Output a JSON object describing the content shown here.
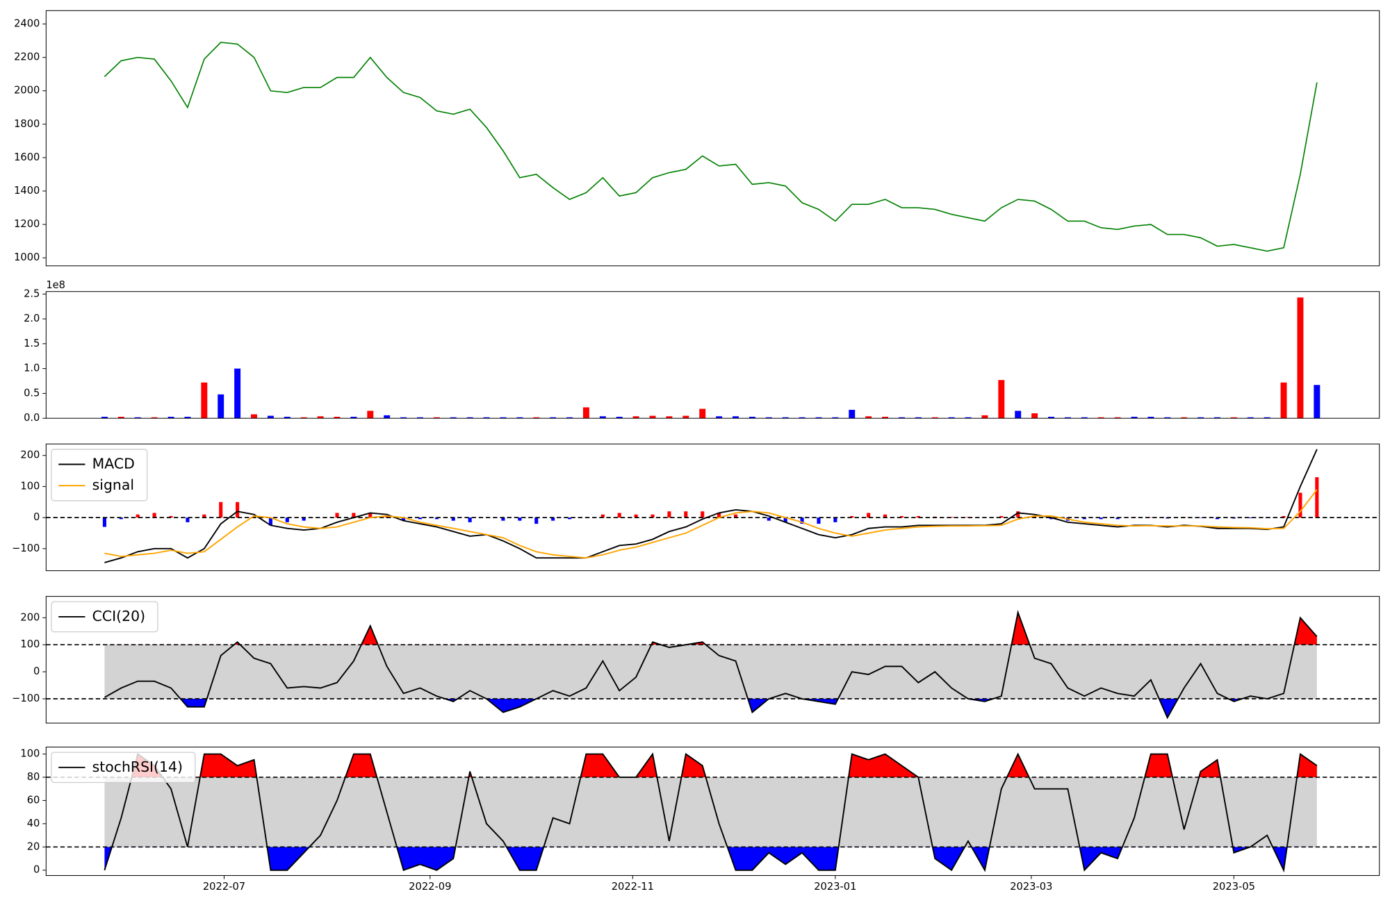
{
  "chart_data": [
    {
      "type": "line",
      "color": "green",
      "x": [
        145,
        150,
        155,
        160,
        165,
        170,
        175,
        180,
        185,
        190,
        195,
        200,
        205,
        210,
        215,
        220,
        225,
        230,
        235,
        240,
        245,
        250,
        255,
        260,
        265,
        270,
        275,
        280,
        285,
        290,
        295,
        300,
        305,
        310,
        315,
        320,
        325,
        330,
        335,
        340,
        345,
        350,
        355,
        360,
        365,
        370,
        375,
        380,
        385,
        390,
        395,
        400,
        405,
        410,
        415,
        420,
        425,
        430,
        435,
        440,
        445,
        450,
        455,
        460,
        465,
        470,
        475,
        480,
        485,
        490,
        495,
        500,
        505,
        510
      ],
      "values": [
        2085,
        2180,
        2200,
        2190,
        2060,
        1900,
        2190,
        2290,
        2280,
        2200,
        2000,
        1990,
        2020,
        2020,
        2080,
        2080,
        2200,
        2080,
        1990,
        1960,
        1880,
        1860,
        1890,
        1780,
        1640,
        1480,
        1500,
        1420,
        1350,
        1390,
        1480,
        1370,
        1390,
        1480,
        1510,
        1530,
        1610,
        1550,
        1560,
        1440,
        1450,
        1430,
        1330,
        1290,
        1220,
        1320,
        1320,
        1350,
        1300,
        1300,
        1290,
        1260,
        1240,
        1220,
        1300,
        1350,
        1340,
        1290,
        1220,
        1220,
        1180,
        1170,
        1190,
        1200,
        1140,
        1140,
        1120,
        1070,
        1080,
        1060,
        1040,
        1060,
        1500,
        2050
      ],
      "xlim": [
        127.4,
        528.8
      ],
      "ylim": [
        952,
        2480
      ],
      "yticks": [
        1000,
        1200,
        1400,
        1600,
        1800,
        2000,
        2200,
        2400
      ]
    },
    {
      "type": "bar",
      "scale_label": "1e8",
      "x": [
        145,
        150,
        155,
        160,
        165,
        170,
        175,
        180,
        185,
        190,
        195,
        200,
        205,
        210,
        215,
        220,
        225,
        230,
        235,
        240,
        245,
        250,
        255,
        260,
        265,
        270,
        275,
        280,
        285,
        290,
        295,
        300,
        305,
        310,
        315,
        320,
        325,
        330,
        335,
        340,
        345,
        350,
        355,
        360,
        365,
        370,
        375,
        380,
        385,
        390,
        395,
        400,
        405,
        410,
        415,
        420,
        425,
        430,
        435,
        440,
        445,
        450,
        455,
        460,
        465,
        470,
        475,
        480,
        485,
        490,
        495,
        500,
        505,
        510
      ],
      "values": [
        0.03,
        0.03,
        0.02,
        0.02,
        0.03,
        0.03,
        0.72,
        0.48,
        1.0,
        0.08,
        0.05,
        0.03,
        0.02,
        0.04,
        0.03,
        0.03,
        0.15,
        0.06,
        0.02,
        0.02,
        0.02,
        0.02,
        0.02,
        0.02,
        0.02,
        0.02,
        0.02,
        0.02,
        0.02,
        0.22,
        0.04,
        0.03,
        0.04,
        0.05,
        0.04,
        0.05,
        0.19,
        0.04,
        0.04,
        0.03,
        0.02,
        0.02,
        0.02,
        0.02,
        0.02,
        0.17,
        0.04,
        0.03,
        0.02,
        0.02,
        0.02,
        0.02,
        0.02,
        0.06,
        0.77,
        0.15,
        0.1,
        0.03,
        0.02,
        0.02,
        0.02,
        0.02,
        0.03,
        0.03,
        0.02,
        0.02,
        0.02,
        0.02,
        0.02,
        0.02,
        0.02,
        0.72,
        2.43,
        0.67
      ],
      "colors": [
        "blue",
        "red",
        "blue",
        "red",
        "blue",
        "blue",
        "red",
        "blue",
        "blue",
        "red",
        "blue",
        "blue",
        "red",
        "red",
        "red",
        "blue",
        "red",
        "blue",
        "blue",
        "blue",
        "red",
        "blue",
        "blue",
        "blue",
        "blue",
        "blue",
        "red",
        "blue",
        "blue",
        "red",
        "blue",
        "blue",
        "red",
        "red",
        "red",
        "red",
        "red",
        "blue",
        "blue",
        "blue",
        "blue",
        "blue",
        "blue",
        "blue",
        "blue",
        "blue",
        "red",
        "red",
        "blue",
        "blue",
        "red",
        "blue",
        "blue",
        "red",
        "red",
        "blue",
        "red",
        "blue",
        "blue",
        "blue",
        "red",
        "red",
        "blue",
        "blue",
        "blue",
        "red",
        "blue",
        "blue",
        "red",
        "blue",
        "blue",
        "red",
        "red",
        "blue"
      ],
      "xlim": [
        127.4,
        528.8
      ],
      "ylim": [
        0,
        2.55
      ],
      "yticks": [
        {
          "value": 0,
          "label": "0.0"
        },
        0.5,
        {
          "value": 1,
          "label": "1.0"
        },
        1.5,
        {
          "value": 2,
          "label": "2.0"
        },
        2.5
      ]
    },
    {
      "type": "macd",
      "legend": "upper left",
      "hline": 0,
      "x": [
        145,
        150,
        155,
        160,
        165,
        170,
        175,
        180,
        185,
        190,
        195,
        200,
        205,
        210,
        215,
        220,
        225,
        230,
        235,
        240,
        245,
        250,
        255,
        260,
        265,
        270,
        275,
        280,
        285,
        290,
        295,
        300,
        305,
        310,
        315,
        320,
        325,
        330,
        335,
        340,
        345,
        350,
        355,
        360,
        365,
        370,
        375,
        380,
        385,
        390,
        395,
        400,
        405,
        410,
        415,
        420,
        425,
        430,
        435,
        440,
        445,
        450,
        455,
        460,
        465,
        470,
        475,
        480,
        485,
        490,
        495,
        500,
        505,
        510
      ],
      "series": [
        {
          "name": "MACD",
          "color": "black",
          "values": [
            -145,
            -130,
            -110,
            -100,
            -100,
            -130,
            -100,
            -20,
            20,
            10,
            -25,
            -35,
            -40,
            -35,
            -15,
            0,
            15,
            10,
            -10,
            -20,
            -30,
            -45,
            -60,
            -55,
            -75,
            -100,
            -130,
            -130,
            -130,
            -130,
            -110,
            -90,
            -85,
            -70,
            -45,
            -30,
            -5,
            15,
            25,
            20,
            5,
            -15,
            -35,
            -55,
            -65,
            -55,
            -35,
            -30,
            -30,
            -25,
            -25,
            -25,
            -25,
            -25,
            -20,
            15,
            10,
            0,
            -15,
            -20,
            -25,
            -30,
            -25,
            -25,
            -30,
            -25,
            -28,
            -35,
            -35,
            -35,
            -38,
            -30,
            100,
            220
          ]
        },
        {
          "name": "signal",
          "color": "orange",
          "values": [
            -115,
            -125,
            -120,
            -115,
            -105,
            -115,
            -110,
            -70,
            -30,
            5,
            0,
            -20,
            -30,
            -35,
            -30,
            -15,
            0,
            5,
            0,
            -15,
            -25,
            -35,
            -45,
            -55,
            -65,
            -90,
            -110,
            -120,
            -125,
            -130,
            -120,
            -105,
            -95,
            -80,
            -65,
            -50,
            -25,
            0,
            15,
            20,
            15,
            0,
            -15,
            -35,
            -50,
            -60,
            -50,
            -40,
            -35,
            -30,
            -28,
            -27,
            -27,
            -26,
            -25,
            -5,
            5,
            5,
            -5,
            -15,
            -20,
            -25,
            -27,
            -26,
            -27,
            -27,
            -27,
            -30,
            -32,
            -33,
            -36,
            -35,
            20,
            90
          ]
        }
      ],
      "histogram": {
        "up_color": "red",
        "down_color": "blue",
        "values": [
          -30,
          -5,
          10,
          15,
          5,
          -15,
          10,
          50,
          50,
          5,
          -25,
          -15,
          -10,
          0,
          15,
          15,
          15,
          5,
          -10,
          -5,
          -5,
          -10,
          -15,
          0,
          -10,
          -10,
          -20,
          -10,
          -5,
          0,
          10,
          15,
          10,
          10,
          20,
          20,
          20,
          15,
          10,
          0,
          -10,
          -15,
          -20,
          -20,
          -15,
          5,
          15,
          10,
          5,
          5,
          3,
          2,
          2,
          1,
          5,
          20,
          5,
          -5,
          -10,
          -5,
          -5,
          -5,
          2,
          1,
          -3,
          2,
          -1,
          -5,
          -3,
          -2,
          -2,
          5,
          80,
          130
        ]
      },
      "xlim": [
        127.4,
        528.8
      ],
      "ylim": [
        -171,
        237
      ],
      "yticks": [
        {
          "value": -100,
          "label": "−100"
        },
        0,
        100,
        200
      ]
    },
    {
      "type": "oscillator",
      "legend": "upper left",
      "lower": -100,
      "upper": 100,
      "band_color": "lightgray",
      "over_color": "red",
      "under_color": "blue",
      "x": [
        145,
        150,
        155,
        160,
        165,
        170,
        175,
        180,
        185,
        190,
        195,
        200,
        205,
        210,
        215,
        220,
        225,
        230,
        235,
        240,
        245,
        250,
        255,
        260,
        265,
        270,
        275,
        280,
        285,
        290,
        295,
        300,
        305,
        310,
        315,
        320,
        325,
        330,
        335,
        340,
        345,
        350,
        355,
        360,
        365,
        370,
        375,
        380,
        385,
        390,
        395,
        400,
        405,
        410,
        415,
        420,
        425,
        430,
        435,
        440,
        445,
        450,
        455,
        460,
        465,
        470,
        475,
        480,
        485,
        490,
        495,
        500,
        505,
        510
      ],
      "series": [
        {
          "name": "CCI(20)",
          "color": "black",
          "values": [
            -95,
            -60,
            -35,
            -35,
            -60,
            -130,
            -130,
            60,
            110,
            50,
            30,
            -60,
            -55,
            -60,
            -40,
            40,
            170,
            20,
            -80,
            -60,
            -90,
            -110,
            -70,
            -100,
            -150,
            -130,
            -100,
            -70,
            -90,
            -60,
            40,
            -70,
            -20,
            110,
            90,
            100,
            110,
            60,
            40,
            -150,
            -100,
            -80,
            -100,
            -110,
            -120,
            0,
            -10,
            20,
            20,
            -40,
            0,
            -60,
            -100,
            -110,
            -90,
            220,
            50,
            30,
            -60,
            -90,
            -60,
            -80,
            -90,
            -30,
            -170,
            -60,
            30,
            -80,
            -110,
            -90,
            -100,
            -80,
            200,
            130
          ]
        }
      ],
      "xlim": [
        127.4,
        528.8
      ],
      "ylim": [
        -190,
        279
      ],
      "yticks": [
        {
          "value": -100,
          "label": "−100"
        },
        0,
        100,
        200
      ]
    },
    {
      "type": "oscillator",
      "legend": "upper left",
      "lower": 20,
      "upper": 80,
      "band_color": "lightgray",
      "over_color": "red",
      "under_color": "blue",
      "x": [
        145,
        150,
        155,
        160,
        165,
        170,
        175,
        180,
        185,
        190,
        195,
        200,
        205,
        210,
        215,
        220,
        225,
        230,
        235,
        240,
        245,
        250,
        255,
        260,
        265,
        270,
        275,
        280,
        285,
        290,
        295,
        300,
        305,
        310,
        315,
        320,
        325,
        330,
        335,
        340,
        345,
        350,
        355,
        360,
        365,
        370,
        375,
        380,
        385,
        390,
        395,
        400,
        405,
        410,
        415,
        420,
        425,
        430,
        435,
        440,
        445,
        450,
        455,
        460,
        465,
        470,
        475,
        480,
        485,
        490,
        495,
        500,
        505,
        510
      ],
      "series": [
        {
          "name": "stochRSI(14)",
          "color": "black",
          "values": [
            0,
            45,
            100,
            90,
            70,
            20,
            100,
            100,
            90,
            95,
            0,
            0,
            15,
            30,
            60,
            100,
            100,
            50,
            0,
            5,
            0,
            10,
            85,
            40,
            25,
            0,
            0,
            45,
            40,
            100,
            100,
            80,
            80,
            100,
            25,
            100,
            90,
            40,
            0,
            0,
            15,
            5,
            15,
            0,
            0,
            100,
            95,
            100,
            90,
            80,
            10,
            0,
            25,
            0,
            70,
            100,
            70,
            70,
            70,
            0,
            15,
            10,
            45,
            100,
            100,
            35,
            85,
            95,
            15,
            20,
            30,
            0,
            100,
            90
          ]
        }
      ],
      "xlim": [
        127.4,
        528.8
      ],
      "ylim": [
        -4.6,
        106
      ],
      "yticks": [
        0,
        20,
        40,
        60,
        80,
        100
      ],
      "xticks": [
        {
          "value": 181,
          "label": "2022-07"
        },
        {
          "value": 243,
          "label": "2022-09"
        },
        {
          "value": 304,
          "label": "2022-11"
        },
        {
          "value": 365,
          "label": "2023-01"
        },
        {
          "value": 424,
          "label": "2023-03"
        },
        {
          "value": 485,
          "label": "2023-05"
        }
      ]
    }
  ]
}
